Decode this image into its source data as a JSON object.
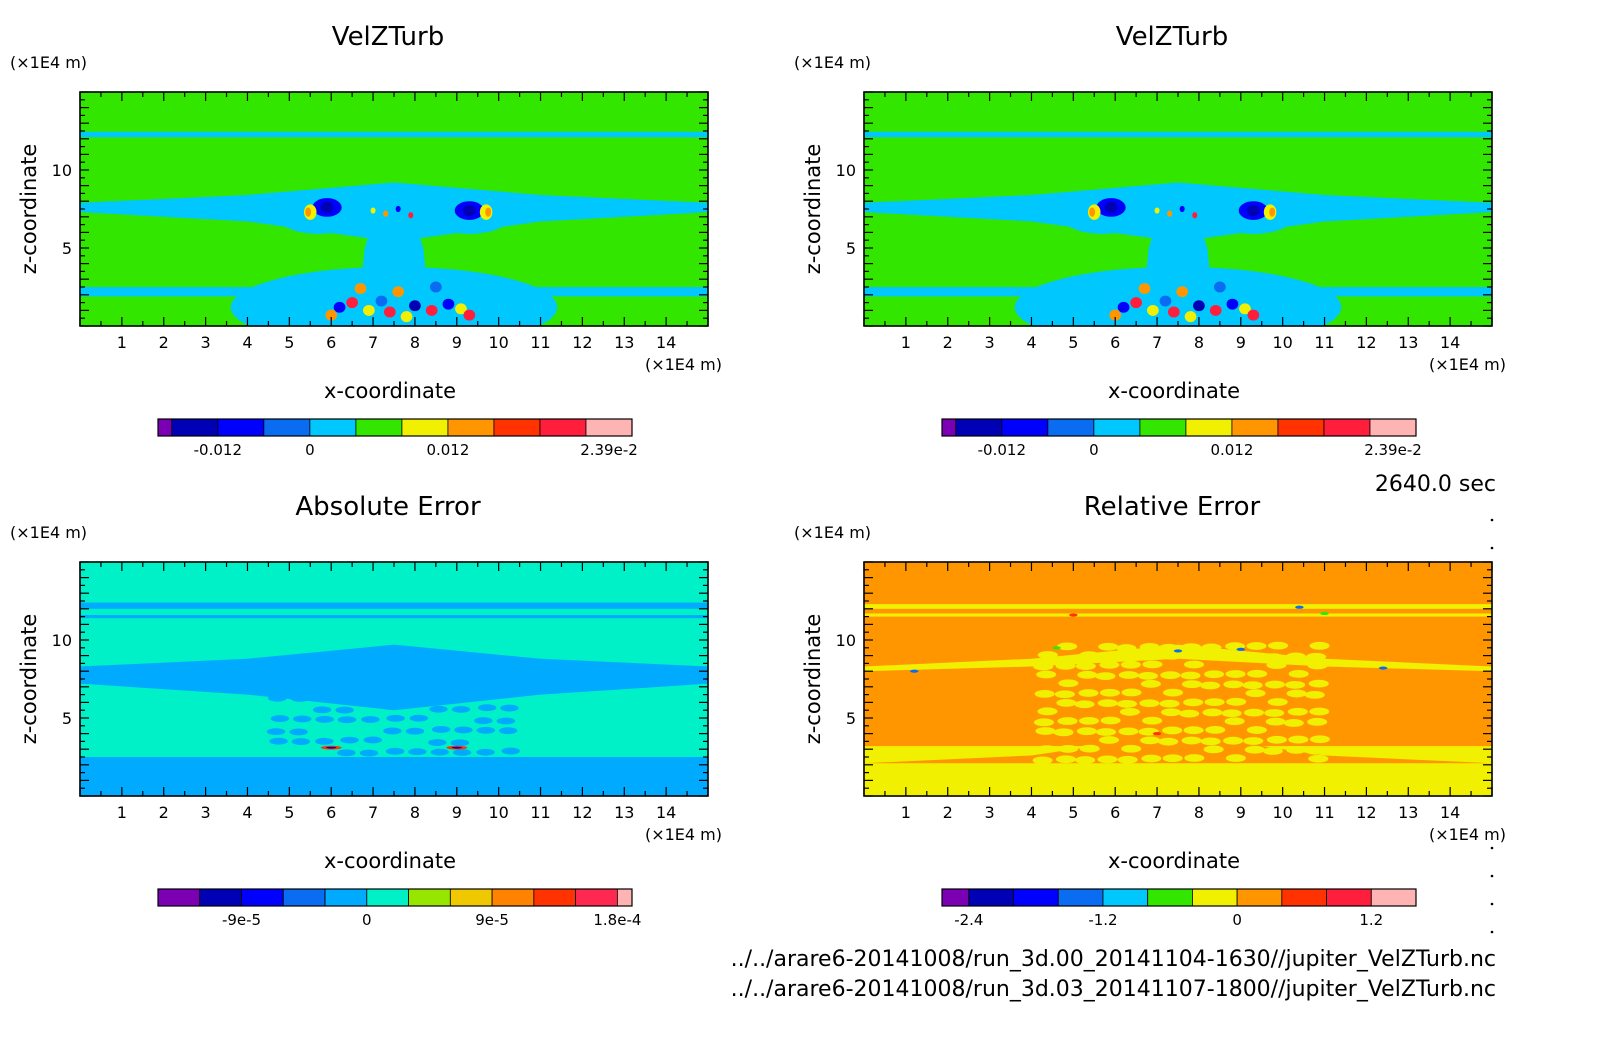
{
  "chart_data": [
    {
      "type": "heatmap",
      "title": "VelZTurb",
      "xlabel": "x-coordinate",
      "ylabel": "z-coordinate",
      "x_unit": "(×1E4 m)",
      "y_unit": "(×1E4 m)",
      "xlim": [
        0,
        15
      ],
      "ylim": [
        0,
        15
      ],
      "xticks": [
        "1",
        "2",
        "3",
        "4",
        "5",
        "6",
        "7",
        "8",
        "9",
        "10",
        "11",
        "12",
        "13",
        "14"
      ],
      "yticks": [
        "5",
        "10"
      ],
      "field": "plume",
      "colorbar": {
        "colors": [
          "#7b00b4",
          "#0000b4",
          "#0000ff",
          "#0a6cf0",
          "#00c8ff",
          "#32e600",
          "#f0f000",
          "#ff9600",
          "#ff3200",
          "#ff1e3c",
          "#ffb4b4"
        ],
        "widths": [
          0.3,
          1,
          1,
          1,
          1,
          1,
          1,
          1,
          1,
          1,
          1
        ],
        "labels": [
          {
            "text": "-0.012",
            "index": 2
          },
          {
            "text": "0",
            "index": 4
          },
          {
            "text": "0.012",
            "index": 7
          },
          {
            "text": "2.39e-2",
            "index": 10.5
          }
        ]
      }
    },
    {
      "type": "heatmap",
      "title": "VelZTurb",
      "xlabel": "x-coordinate",
      "ylabel": "z-coordinate",
      "x_unit": "(×1E4 m)",
      "y_unit": "(×1E4 m)",
      "xlim": [
        0,
        15
      ],
      "ylim": [
        0,
        15
      ],
      "xticks": [
        "1",
        "2",
        "3",
        "4",
        "5",
        "6",
        "7",
        "8",
        "9",
        "10",
        "11",
        "12",
        "13",
        "14"
      ],
      "yticks": [
        "5",
        "10"
      ],
      "field": "plume",
      "colorbar": {
        "colors": [
          "#7b00b4",
          "#0000b4",
          "#0000ff",
          "#0a6cf0",
          "#00c8ff",
          "#32e600",
          "#f0f000",
          "#ff9600",
          "#ff3200",
          "#ff1e3c",
          "#ffb4b4"
        ],
        "widths": [
          0.3,
          1,
          1,
          1,
          1,
          1,
          1,
          1,
          1,
          1,
          1
        ],
        "labels": [
          {
            "text": "-0.012",
            "index": 2
          },
          {
            "text": "0",
            "index": 4
          },
          {
            "text": "0.012",
            "index": 7
          },
          {
            "text": "2.39e-2",
            "index": 10.5
          }
        ]
      }
    },
    {
      "type": "heatmap",
      "title": "Absolute Error",
      "xlabel": "x-coordinate",
      "ylabel": "z-coordinate",
      "x_unit": "(×1E4 m)",
      "y_unit": "(×1E4 m)",
      "xlim": [
        0,
        15
      ],
      "ylim": [
        0,
        15
      ],
      "xticks": [
        "1",
        "2",
        "3",
        "4",
        "5",
        "6",
        "7",
        "8",
        "9",
        "10",
        "11",
        "12",
        "13",
        "14"
      ],
      "yticks": [
        "5",
        "10"
      ],
      "field": "abserr",
      "colorbar": {
        "colors": [
          "#7b00b4",
          "#0000b4",
          "#0000ff",
          "#0a6cf0",
          "#00aaff",
          "#00f0c8",
          "#96e600",
          "#f0c800",
          "#ff8200",
          "#ff3200",
          "#ff2850",
          "#ffb4b4"
        ],
        "widths": [
          1,
          1,
          1,
          1,
          1,
          1,
          1,
          1,
          1,
          1,
          1,
          0.35
        ],
        "labels": [
          {
            "text": "-9e-5",
            "index": 2
          },
          {
            "text": "0",
            "index": 5
          },
          {
            "text": "9e-5",
            "index": 8
          },
          {
            "text": "1.8e-4",
            "index": 11
          }
        ]
      }
    },
    {
      "type": "heatmap",
      "title": "Relative Error",
      "xlabel": "x-coordinate",
      "ylabel": "z-coordinate",
      "x_unit": "(×1E4 m)",
      "y_unit": "(×1E4 m)",
      "xlim": [
        0,
        15
      ],
      "ylim": [
        0,
        15
      ],
      "xticks": [
        "1",
        "2",
        "3",
        "4",
        "5",
        "6",
        "7",
        "8",
        "9",
        "10",
        "11",
        "12",
        "13",
        "14"
      ],
      "yticks": [
        "5",
        "10"
      ],
      "field": "relerr",
      "colorbar": {
        "colors": [
          "#7b00b4",
          "#0000b4",
          "#0000ff",
          "#0a6cf0",
          "#00c8ff",
          "#32e600",
          "#f0f000",
          "#ff9600",
          "#ff3200",
          "#ff1e3c",
          "#ffb4b4"
        ],
        "widths": [
          0.6,
          1,
          1,
          1,
          1,
          1,
          1,
          1,
          1,
          1,
          1
        ],
        "labels": [
          {
            "text": "-2.4",
            "index": 1
          },
          {
            "text": "-1.2",
            "index": 4
          },
          {
            "text": "0",
            "index": 7
          },
          {
            "text": "1.2",
            "index": 10
          }
        ]
      }
    }
  ],
  "time_label": "2640.0 sec",
  "file_paths": [
    "../../arare6-20141008/run_3d.00_20141104-1630//jupiter_VelZTurb.nc",
    "../../arare6-20141008/run_3d.03_20141107-1800//jupiter_VelZTurb.nc"
  ]
}
